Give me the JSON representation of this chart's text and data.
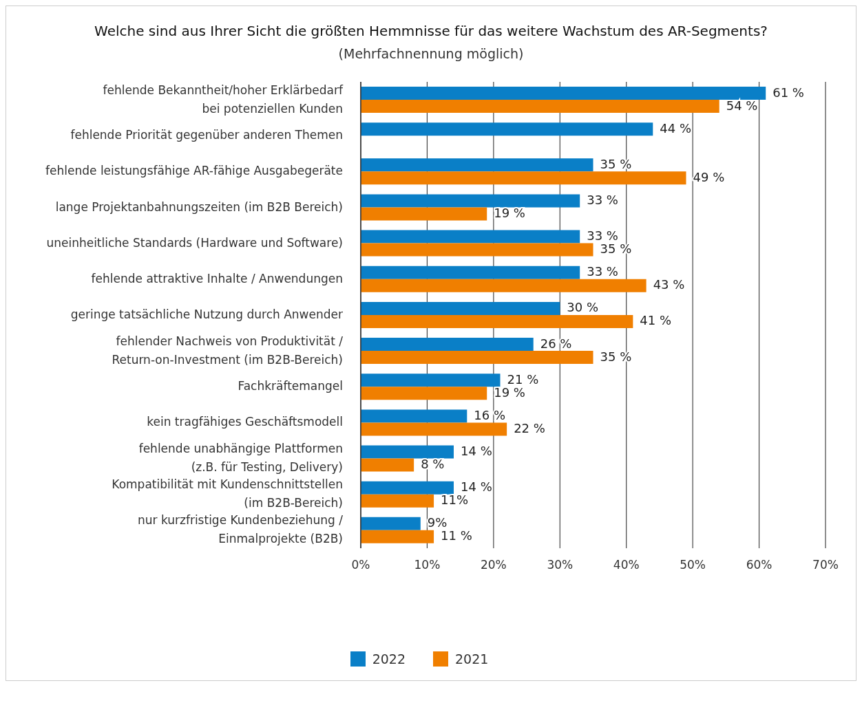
{
  "chart_data": {
    "type": "bar",
    "orientation": "horizontal",
    "title": "Welche sind aus Ihrer Sicht die größten Hemmnisse für das weitere Wachstum des AR-Segments?",
    "subtitle": "(Mehrfachnennung möglich)",
    "categories": [
      "fehlende Bekanntheit/hoher Erklärbedarf\nbei potenziellen Kunden",
      "fehlende Priorität gegenüber anderen Themen",
      "fehlende leistungsfähige AR-fähige Ausgabegeräte",
      "lange Projektanbahnungszeiten (im B2B Bereich)",
      "uneinheitliche Standards (Hardware und Software)",
      "fehlende attraktive Inhalte / Anwendungen",
      "geringe tatsächliche Nutzung durch Anwender",
      "fehlender Nachweis von Produktivität /\nReturn-on-Investment (im B2B-Bereich)",
      "Fachkräftemangel",
      "kein tragfähiges Geschäftsmodell",
      "fehlende unabhängige Plattformen\n(z.B. für Testing, Delivery)",
      "Kompatibilität mit Kundenschnittstellen\n(im B2B-Bereich)",
      "nur kurzfristige Kundenbeziehung /\nEinmalprojekte (B2B)"
    ],
    "series": [
      {
        "name": "2022",
        "color": "#0a7fc7",
        "values": [
          61,
          44,
          35,
          33,
          33,
          33,
          30,
          26,
          21,
          16,
          14,
          14,
          9
        ],
        "value_labels": [
          "61 %",
          "44 %",
          "35 %",
          "33 %",
          "33 %",
          "33 %",
          "30 %",
          "26 %",
          "21 %",
          "16 %",
          "14 %",
          "14 %",
          "9%"
        ]
      },
      {
        "name": "2021",
        "color": "#f07f00",
        "values": [
          54,
          null,
          49,
          19,
          35,
          43,
          41,
          35,
          19,
          22,
          8,
          11,
          11
        ],
        "value_labels": [
          "54 %",
          null,
          "49 %",
          "19 %",
          "35 %",
          "43 %",
          "41 %",
          "35 %",
          "19 %",
          "22 %",
          "8 %",
          "11%",
          "11 %"
        ]
      }
    ],
    "xlim": [
      0,
      70
    ],
    "xticks": [
      {
        "value": 0,
        "label": "0%"
      },
      {
        "value": 10,
        "label": "10%"
      },
      {
        "value": 20,
        "label": "20%"
      },
      {
        "value": 30,
        "label": "30%"
      },
      {
        "value": 40,
        "label": "40%"
      },
      {
        "value": 50,
        "label": "50%"
      },
      {
        "value": 60,
        "label": "60%"
      },
      {
        "value": 70,
        "label": "70%"
      }
    ],
    "grid": "x",
    "legend": "bottom"
  }
}
